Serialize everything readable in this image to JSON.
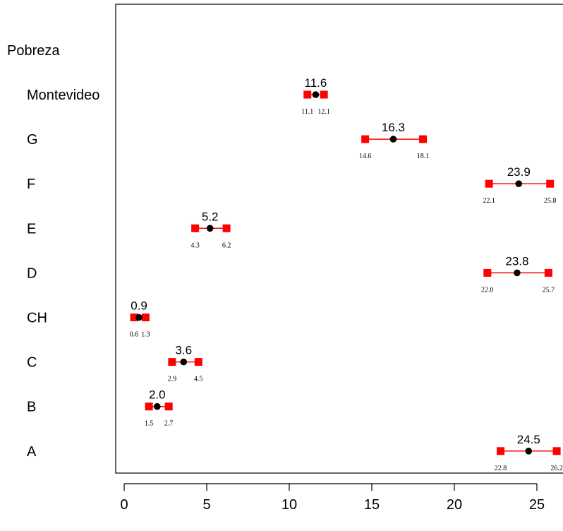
{
  "chart_data": {
    "type": "scatter",
    "title": "",
    "xlabel": "",
    "ylabel": "",
    "header_label": "Pobreza",
    "xlim": [
      -0.5,
      26.5
    ],
    "xticks": [
      0,
      5,
      10,
      15,
      20,
      25
    ],
    "xtick_labels": [
      "0",
      "5",
      "10",
      "15",
      "20",
      "25"
    ],
    "grid": false,
    "point_color": "#000000",
    "interval_color": "#ff0000",
    "categories": [
      "Montevideo",
      "G",
      "F",
      "E",
      "D",
      "CH",
      "C",
      "B",
      "A"
    ],
    "estimates": [
      {
        "category": "Montevideo",
        "value": 11.6,
        "value_label": "11.6",
        "lower": 11.1,
        "lower_label": "11.1",
        "upper": 12.1,
        "upper_label": "12.1"
      },
      {
        "category": "G",
        "value": 16.3,
        "value_label": "16.3",
        "lower": 14.6,
        "lower_label": "14.6",
        "upper": 18.1,
        "upper_label": "18.1"
      },
      {
        "category": "F",
        "value": 23.9,
        "value_label": "23.9",
        "lower": 22.1,
        "lower_label": "22.1",
        "upper": 25.8,
        "upper_label": "25.8"
      },
      {
        "category": "E",
        "value": 5.2,
        "value_label": "5.2",
        "lower": 4.3,
        "lower_label": "4.3",
        "upper": 6.2,
        "upper_label": "6.2"
      },
      {
        "category": "D",
        "value": 23.8,
        "value_label": "23.8",
        "lower": 22.0,
        "lower_label": "22.0",
        "upper": 25.7,
        "upper_label": "25.7"
      },
      {
        "category": "CH",
        "value": 0.9,
        "value_label": "0.9",
        "lower": 0.6,
        "lower_label": "0.6",
        "upper": 1.3,
        "upper_label": "1.3"
      },
      {
        "category": "C",
        "value": 3.6,
        "value_label": "3.6",
        "lower": 2.9,
        "lower_label": "2.9",
        "upper": 4.5,
        "upper_label": "4.5"
      },
      {
        "category": "B",
        "value": 2.0,
        "value_label": "2.0",
        "lower": 1.5,
        "lower_label": "1.5",
        "upper": 2.7,
        "upper_label": "2.7"
      },
      {
        "category": "A",
        "value": 24.5,
        "value_label": "24.5",
        "lower": 22.8,
        "lower_label": "22.8",
        "upper": 26.2,
        "upper_label": "26.2"
      }
    ]
  }
}
